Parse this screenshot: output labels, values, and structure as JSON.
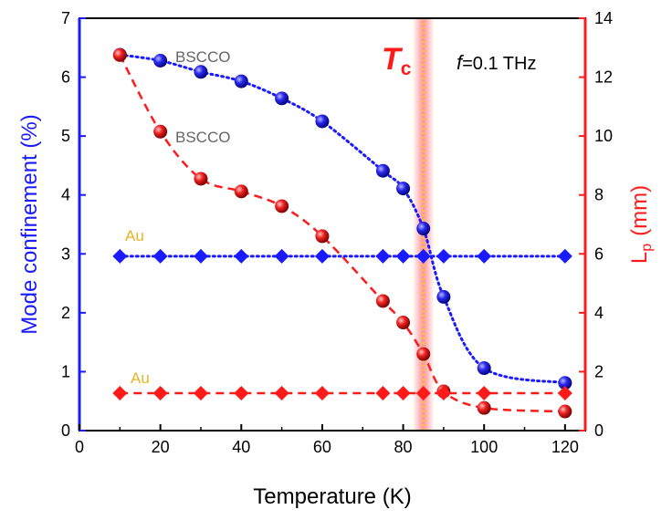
{
  "chart_data": {
    "type": "line",
    "xlabel": "Temperature (K)",
    "ylabel_left": "Mode confinement (%)",
    "ylabel_right_main": "L",
    "ylabel_right_sub": "p",
    "ylabel_right_units": "(mm)",
    "xlim": [
      0,
      125
    ],
    "ylim_left": [
      0,
      7
    ],
    "ylim_right": [
      0,
      14
    ],
    "x_ticks": [
      "0",
      "20",
      "40",
      "60",
      "80",
      "100",
      "120"
    ],
    "y_left_ticks": [
      "0",
      "1",
      "2",
      "3",
      "4",
      "5",
      "6",
      "7"
    ],
    "y_right_ticks": [
      "0",
      "2",
      "4",
      "6",
      "8",
      "10",
      "12",
      "14"
    ],
    "colors": {
      "left_axis": "#1a1aff",
      "right_axis": "#ff1a1a",
      "au_label": "#e6b422",
      "bscco_label": "#666666",
      "tc_band": "#ff8080",
      "tc_line": "#ffd700"
    },
    "tc": {
      "x": 85,
      "label_main": "T",
      "label_sub": "c"
    },
    "frequency_label_italic": "f",
    "frequency_label_rest": "=0.1 THz",
    "series": [
      {
        "label": "BSCCO",
        "axis": "left",
        "color": "#1a1aff",
        "marker": "sphere",
        "line_style": "dotted",
        "x": [
          10,
          20,
          30,
          40,
          50,
          60,
          75,
          80,
          85,
          90,
          100,
          120
        ],
        "y": [
          6.38,
          6.28,
          6.09,
          5.93,
          5.64,
          5.25,
          4.41,
          4.11,
          3.43,
          2.27,
          1.06,
          0.81
        ]
      },
      {
        "label": "BSCCO",
        "axis": "right",
        "color": "#ff1a1a",
        "marker": "sphere",
        "line_style": "dashed",
        "x": [
          10,
          20,
          30,
          40,
          50,
          60,
          75,
          80,
          85,
          90,
          100,
          120
        ],
        "y": [
          12.75,
          10.15,
          8.55,
          8.12,
          7.62,
          6.6,
          4.4,
          3.67,
          2.6,
          1.33,
          0.77,
          0.65
        ]
      },
      {
        "label": "Au",
        "axis": "left",
        "color": "#1a1aff",
        "marker": "diamond",
        "line_style": "dotted",
        "x": [
          10,
          20,
          30,
          40,
          50,
          60,
          75,
          80,
          85,
          90,
          100,
          120
        ],
        "y": [
          2.96,
          2.96,
          2.96,
          2.96,
          2.96,
          2.96,
          2.96,
          2.96,
          2.96,
          2.96,
          2.96,
          2.96
        ]
      },
      {
        "label": "Au",
        "axis": "right",
        "color": "#ff1a1a",
        "marker": "diamond",
        "line_style": "dashed",
        "x": [
          10,
          20,
          30,
          40,
          50,
          60,
          75,
          80,
          85,
          90,
          100,
          120
        ],
        "y": [
          1.27,
          1.27,
          1.27,
          1.27,
          1.27,
          1.27,
          1.27,
          1.27,
          1.27,
          1.27,
          1.27,
          1.27
        ]
      }
    ]
  }
}
